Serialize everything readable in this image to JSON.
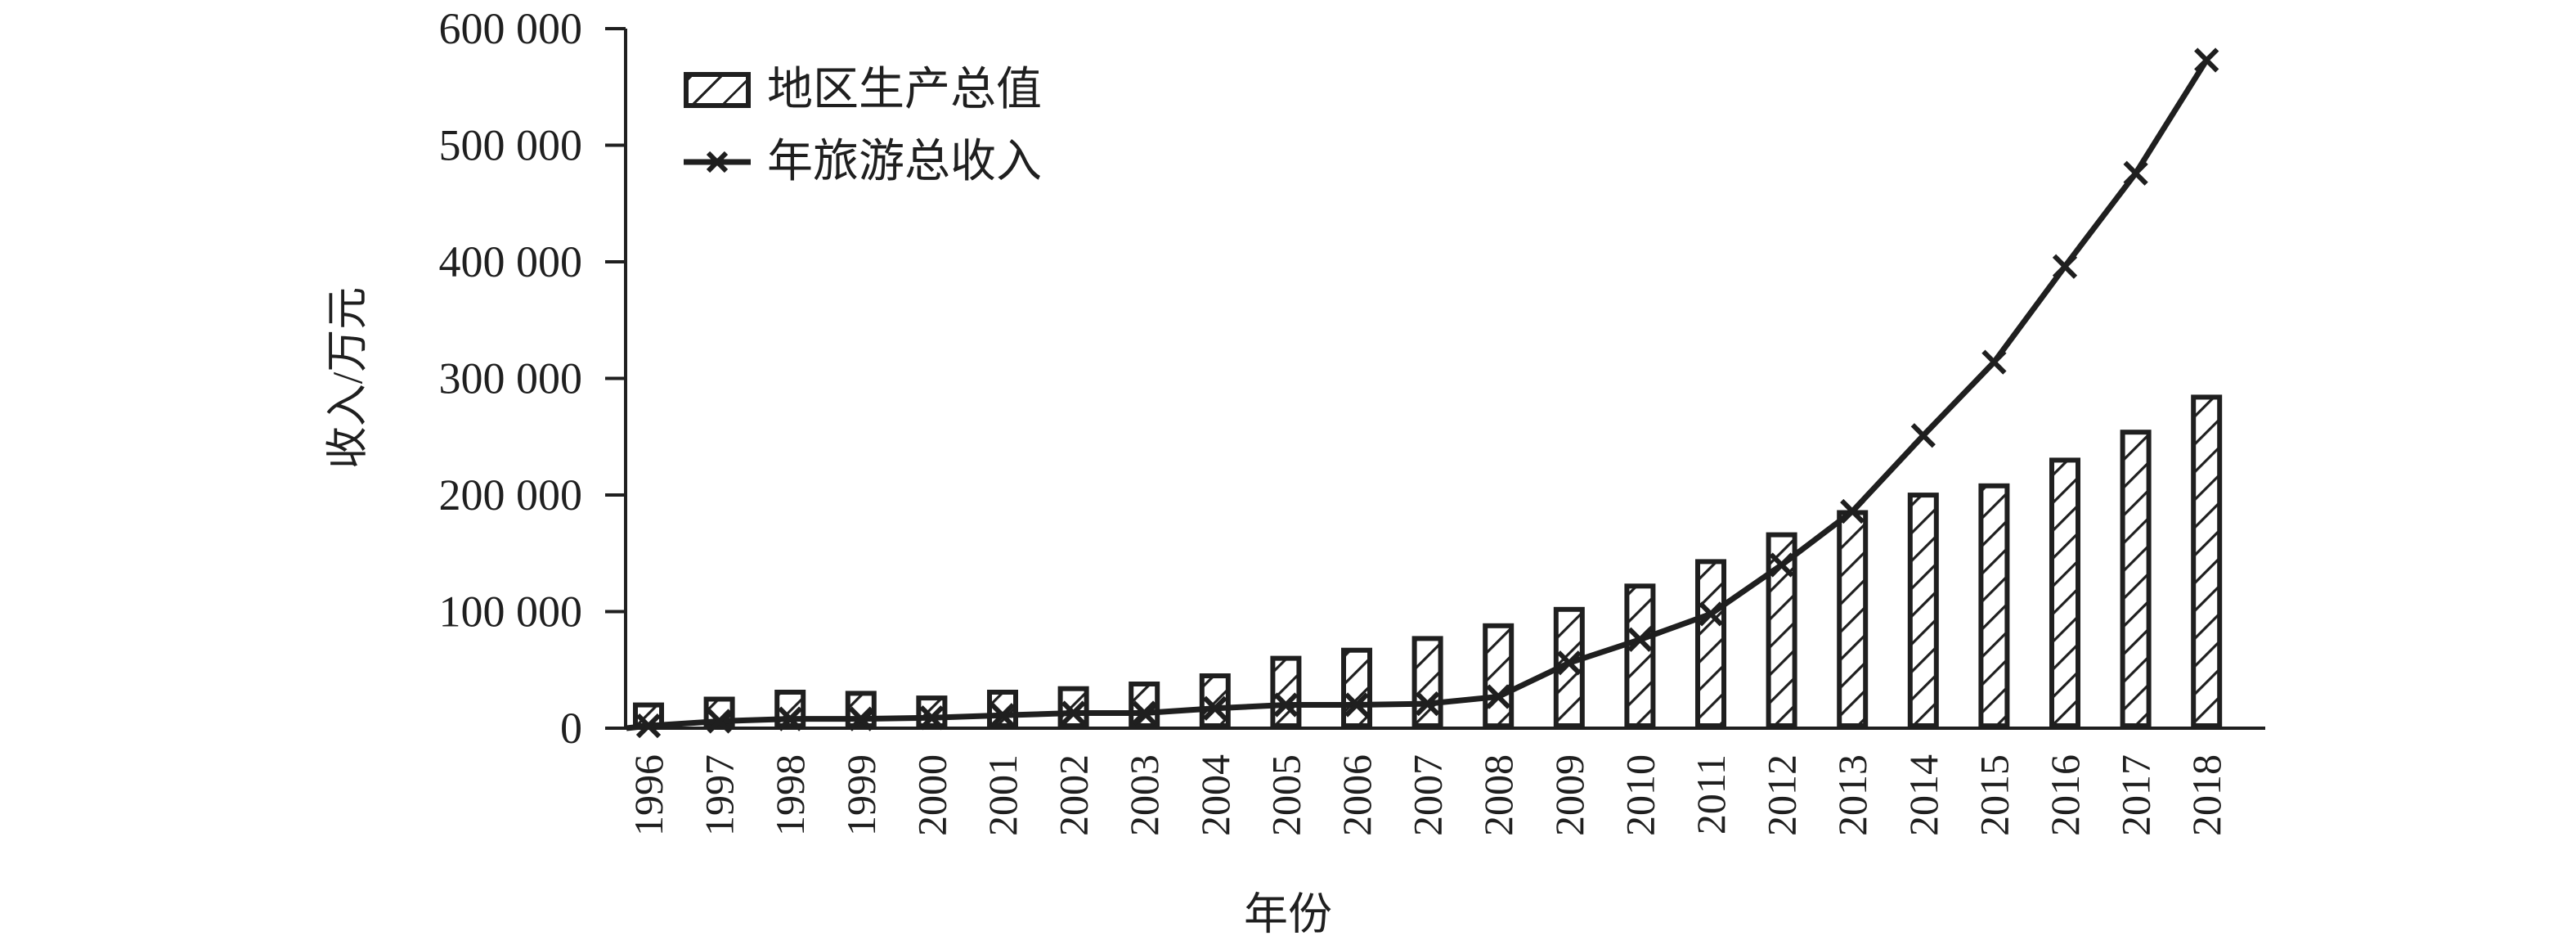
{
  "figure": {
    "background": "#ffffff",
    "ink_color": "#1f1f1f"
  },
  "legend": {
    "items": [
      {
        "label": "地区生产总值",
        "series": "bar",
        "swatch": "hatched-rect"
      },
      {
        "label": "年旅游总收入",
        "series": "line",
        "swatch": "line-with-x-marker"
      }
    ]
  },
  "axes": {
    "y_title": "收入/万元",
    "x_title": "年份",
    "y_ticks": [
      0,
      100000,
      200000,
      300000,
      400000,
      500000,
      600000
    ],
    "y_tick_labels": [
      "0",
      "100 000",
      "200 000",
      "300 000",
      "400 000",
      "500 000",
      "600 000"
    ]
  },
  "chart_data": {
    "type": "bar",
    "subtype": "combo-bar-line",
    "title": "",
    "xlabel": "年份",
    "ylabel": "收入/万元",
    "ylim": [
      0,
      600000
    ],
    "ytick_step": 100000,
    "grid": false,
    "legend_position": "upper-left-inside",
    "categories": [
      "1996",
      "1997",
      "1998",
      "1999",
      "2000",
      "2001",
      "2002",
      "2003",
      "2004",
      "2005",
      "2006",
      "2007",
      "2008",
      "2009",
      "2010",
      "2011",
      "2012",
      "2013",
      "2014",
      "2015",
      "2016",
      "2017",
      "2018"
    ],
    "series": [
      {
        "name": "地区生产总值",
        "type": "bar",
        "style": "diagonal-hatch",
        "values": [
          22000,
          27000,
          33000,
          32000,
          28000,
          33000,
          36000,
          40000,
          47000,
          62000,
          69000,
          79000,
          90000,
          104000,
          124000,
          145000,
          168000,
          187000,
          202000,
          210000,
          232000,
          256000,
          286000
        ]
      },
      {
        "name": "年旅游总收入",
        "type": "line",
        "marker": "x",
        "values": [
          2000,
          6000,
          8000,
          8000,
          9000,
          11000,
          13000,
          13000,
          17000,
          20000,
          20000,
          21000,
          27000,
          56000,
          76000,
          98000,
          140000,
          186000,
          251000,
          314000,
          396000,
          476000,
          573000
        ]
      }
    ]
  }
}
